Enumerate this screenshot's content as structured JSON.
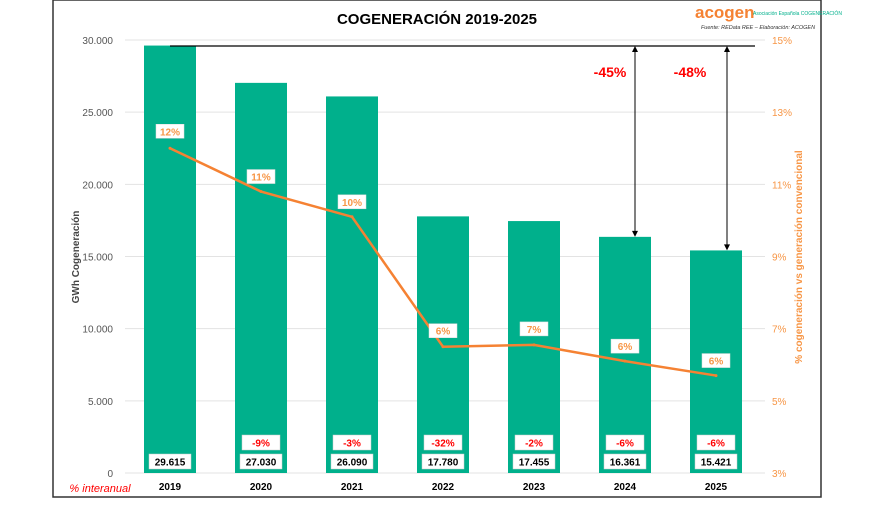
{
  "logo": {
    "brand": "acogen",
    "tagline": "Asociación Española COGENERACIÓN"
  },
  "source": "Fuente: REData REE – Elaboración: ACOGEN",
  "interanual_label": "% interanual",
  "colors": {
    "bar": "#00B08C",
    "line": "#F58233",
    "line_label": "#F79646",
    "change": "#FF0000",
    "frame": "#333333"
  },
  "chart_data": {
    "type": "bar",
    "title": "COGENERACIÓN 2019-2025",
    "ylabel": "GWh Cogeneración",
    "y2label": "% cogeneración  vs generación convencional",
    "ylim": [
      0,
      30000
    ],
    "y2lim": [
      3,
      15
    ],
    "yticks": [
      "0",
      "5.000",
      "10.000",
      "15.000",
      "20.000",
      "25.000",
      "30.000"
    ],
    "ytick_values": [
      0,
      5000,
      10000,
      15000,
      20000,
      25000,
      30000
    ],
    "y2ticks": [
      "3%",
      "5%",
      "7%",
      "9%",
      "11%",
      "13%",
      "15%"
    ],
    "y2tick_values": [
      3,
      5,
      7,
      9,
      11,
      13,
      15
    ],
    "grid": true,
    "categories": [
      "2019",
      "2020",
      "2021",
      "2022",
      "2023",
      "2024",
      "2025"
    ],
    "series": [
      {
        "type": "bar",
        "values": [
          29615,
          27030,
          26090,
          17780,
          17455,
          16361,
          15421
        ],
        "labels": [
          "29.615",
          "27.030",
          "26.090",
          "17.780",
          "17.455",
          "16.361",
          "15.421"
        ]
      },
      {
        "type": "line",
        "axis": "right",
        "values": [
          12.0,
          10.8,
          10.1,
          6.5,
          6.55,
          6.1,
          5.7
        ],
        "labels": [
          "12%",
          "11%",
          "10%",
          "6%",
          "7%",
          "6%",
          "6%"
        ]
      }
    ],
    "yoy_change": [
      "",
      "-9%",
      "-3%",
      "-32%",
      "-2%",
      "-6%",
      "-6%"
    ],
    "annotations": [
      {
        "from": "2019",
        "to": "2024",
        "text": "-45%"
      },
      {
        "from": "2019",
        "to": "2025",
        "text": "-48%"
      }
    ]
  }
}
